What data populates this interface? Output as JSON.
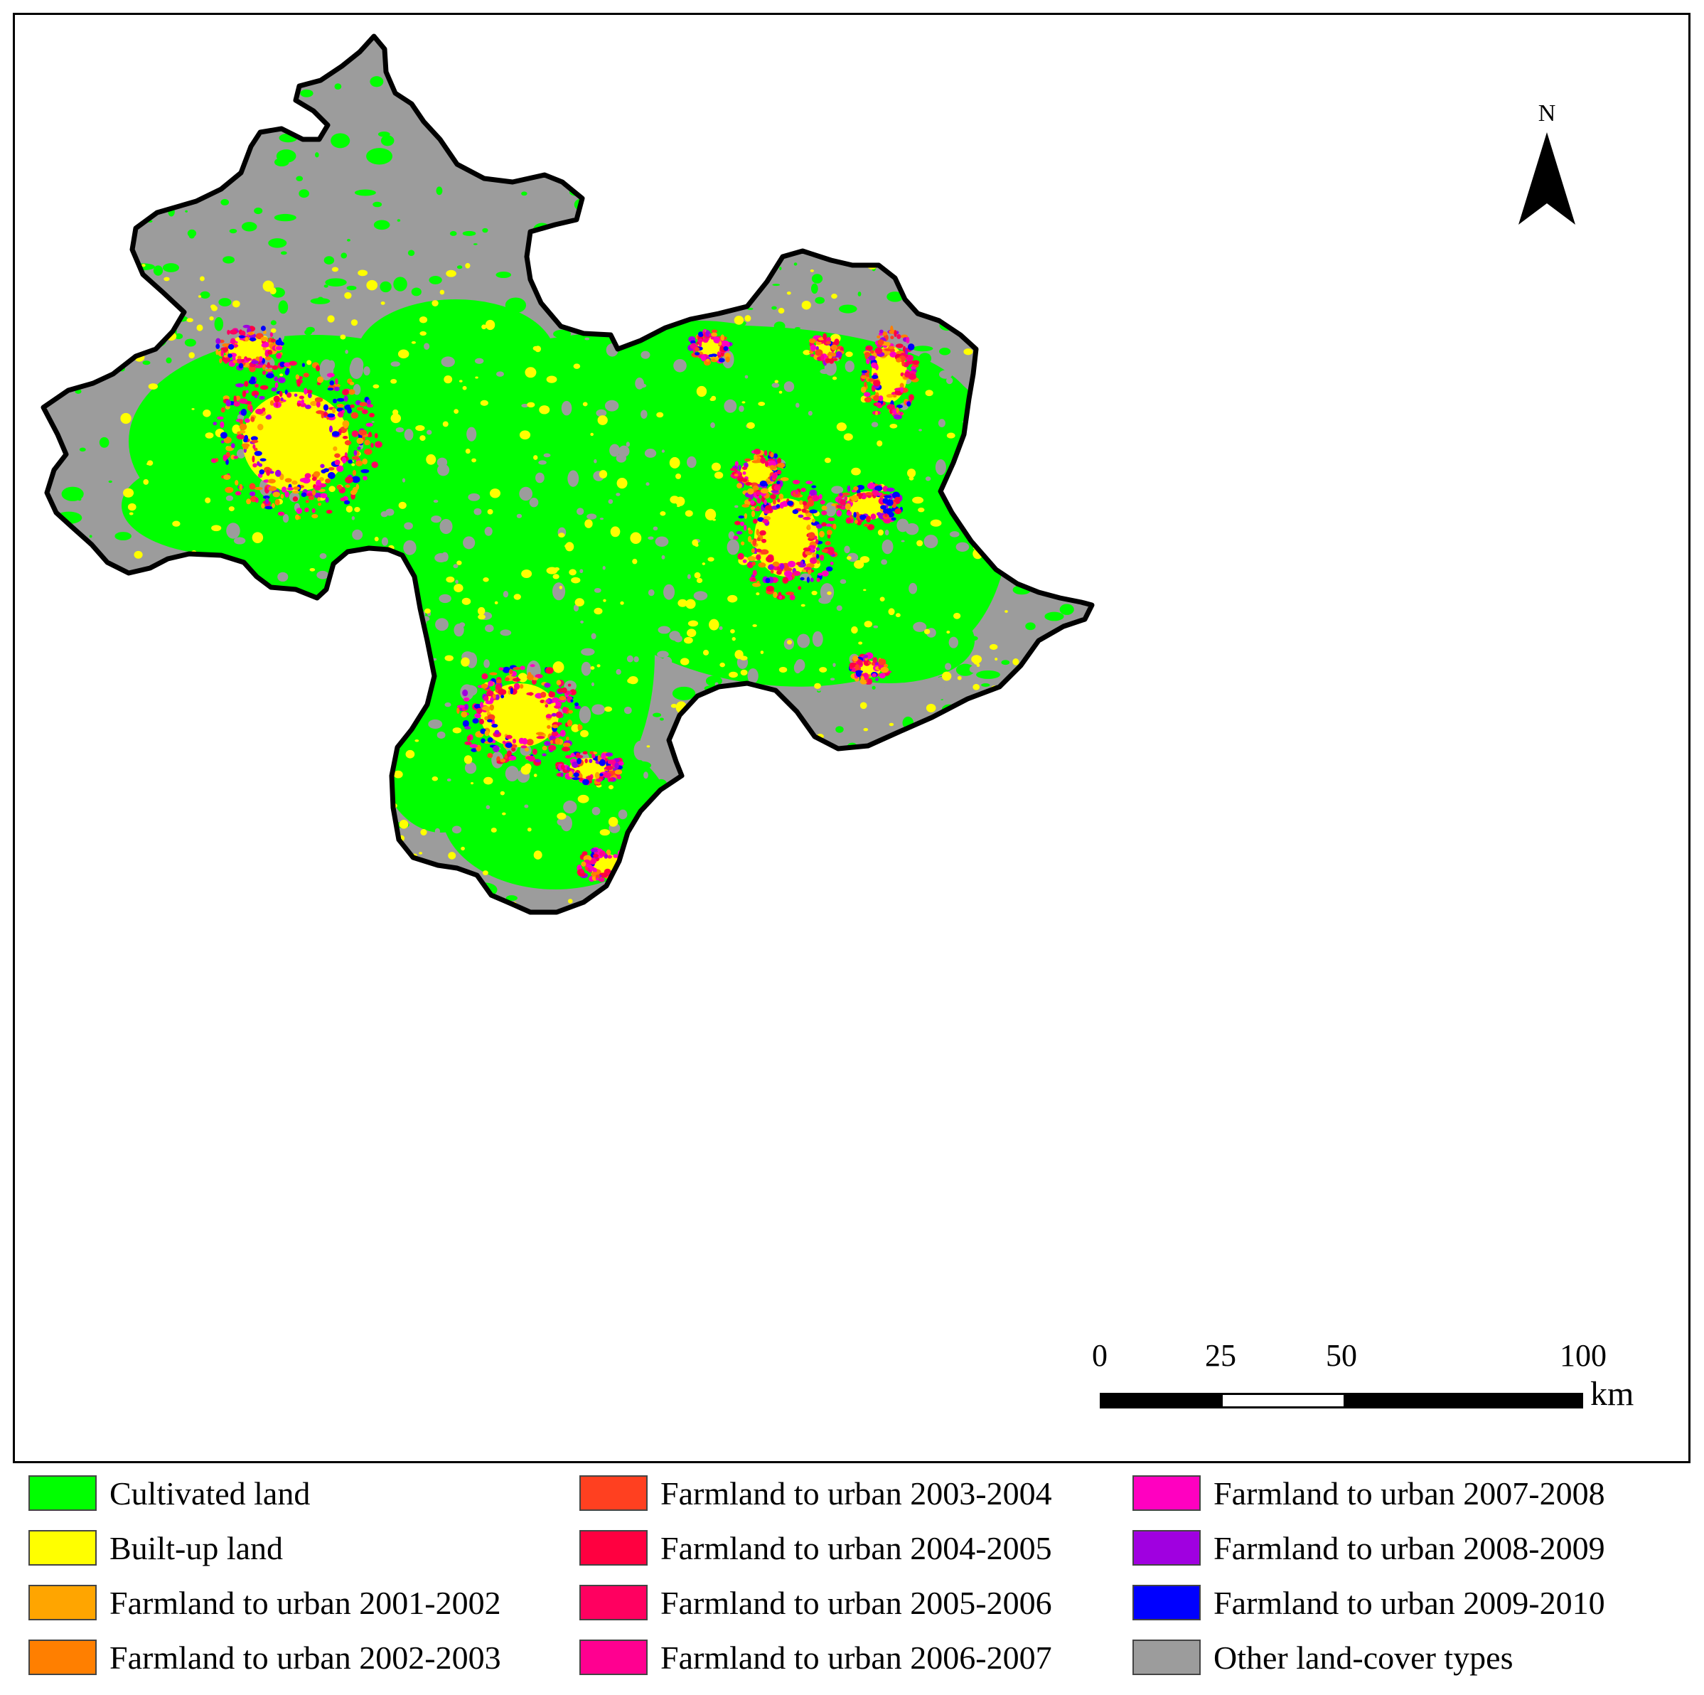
{
  "map": {
    "colors": {
      "cultivated": "#00ff00",
      "built_up": "#ffff00",
      "other": "#9c9c9c",
      "boundary": "#000000"
    }
  },
  "north_arrow": {
    "label": "N"
  },
  "scale_bar": {
    "ticks": [
      "0",
      "25",
      "50",
      "100"
    ],
    "unit": "km"
  },
  "legend": {
    "items": [
      {
        "label": "Cultivated land",
        "color": "#00ff00"
      },
      {
        "label": "Built-up land",
        "color": "#ffff00"
      },
      {
        "label": "Farmland to urban 2001-2002",
        "color": "#ffa500"
      },
      {
        "label": "Farmland to urban 2002-2003",
        "color": "#ff7f00"
      },
      {
        "label": "Farmland to urban 2003-2004",
        "color": "#ff4020"
      },
      {
        "label": "Farmland to urban 2004-2005",
        "color": "#ff0040"
      },
      {
        "label": "Farmland to urban 2005-2006",
        "color": "#ff0060"
      },
      {
        "label": "Farmland to urban 2006-2007",
        "color": "#ff0090"
      },
      {
        "label": "Farmland to urban 2007-2008",
        "color": "#ff00c0"
      },
      {
        "label": "Farmland to urban 2008-2009",
        "color": "#a000e0"
      },
      {
        "label": "Farmland to urban 2009-2010",
        "color": "#0000ff"
      },
      {
        "label": "Other land-cover types",
        "color": "#9c9c9c"
      }
    ]
  }
}
